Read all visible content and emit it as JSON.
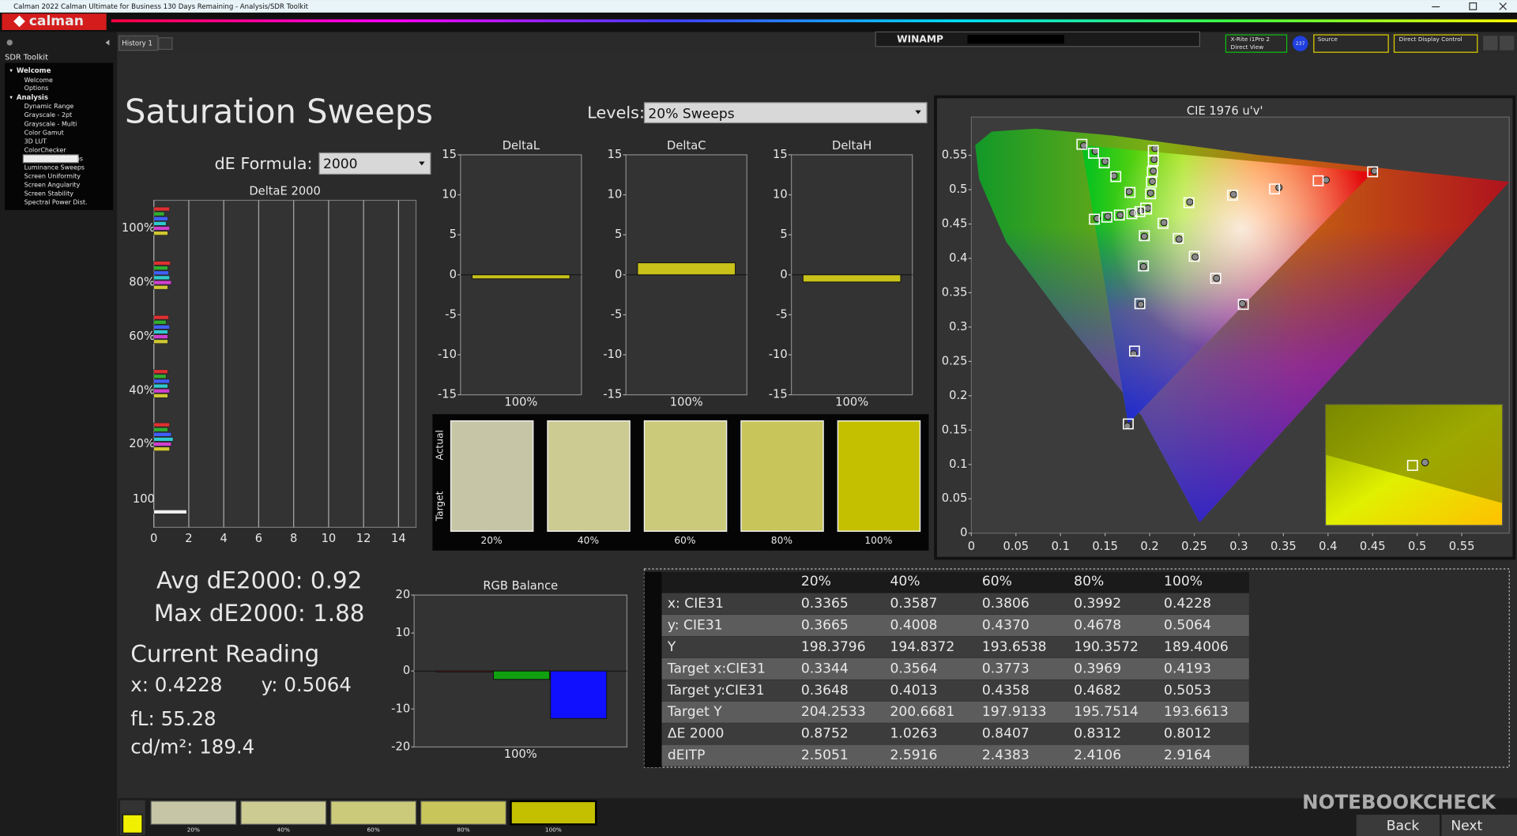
{
  "title_bar": "Calman 2022 Calman Ultimate for Business 130 Days Remaining  - Analysis/SDR Toolkit",
  "logo": "calman",
  "tab": "History 1",
  "winamp": "WINAMP",
  "meter": {
    "line1": "X-Rite i1Pro 2",
    "line2": "Direct View",
    "badge": "237"
  },
  "source": "Source",
  "display": "Direct Display Control",
  "sidebar": {
    "title": "SDR Toolkit",
    "items": [
      {
        "label": "Welcome",
        "group": true
      },
      {
        "label": "Welcome"
      },
      {
        "label": "Options"
      },
      {
        "label": "Analysis",
        "group": true
      },
      {
        "label": "Dynamic Range"
      },
      {
        "label": "Grayscale - 2pt"
      },
      {
        "label": "Grayscale - Multi"
      },
      {
        "label": "Color Gamut"
      },
      {
        "label": "3D LUT"
      },
      {
        "label": "ColorChecker"
      },
      {
        "label": "Saturation Sweeps",
        "selected": true
      },
      {
        "label": "Luminance Sweeps"
      },
      {
        "label": "Screen Uniformity"
      },
      {
        "label": "Screen Angularity"
      },
      {
        "label": "Screen Stability"
      },
      {
        "label": "Spectral Power Dist."
      }
    ]
  },
  "page_title": "Saturation Sweeps",
  "levels": {
    "label": "Levels:",
    "value": "20% Sweeps"
  },
  "formula": {
    "label": "dE Formula:",
    "value": "2000"
  },
  "deltae_chart": {
    "type": "bar",
    "orientation": "horizontal",
    "title": "DeltaE 2000",
    "categories": [
      "100%",
      "80%",
      "60%",
      "40%",
      "20%",
      "100"
    ],
    "series": [
      {
        "color": "#e03030",
        "values": [
          0.9,
          0.95,
          0.85,
          0.8,
          0.9,
          null
        ]
      },
      {
        "color": "#30b030",
        "values": [
          0.6,
          0.8,
          0.7,
          0.7,
          0.8,
          null
        ]
      },
      {
        "color": "#4060ff",
        "values": [
          0.8,
          0.85,
          0.9,
          0.9,
          1.0,
          null
        ]
      },
      {
        "color": "#30c8d0",
        "values": [
          0.7,
          0.9,
          0.8,
          0.8,
          1.1,
          null
        ]
      },
      {
        "color": "#d040d0",
        "values": [
          0.9,
          1.0,
          0.8,
          0.9,
          1.0,
          null
        ]
      },
      {
        "color": "#d0c830",
        "values": [
          0.8,
          0.8,
          0.8,
          0.8,
          0.9,
          null
        ]
      },
      {
        "color": "#f0f0f0",
        "values": [
          null,
          null,
          null,
          null,
          null,
          1.88
        ]
      }
    ],
    "xlim": [
      0,
      15
    ],
    "xticks": [
      0,
      2,
      4,
      6,
      8,
      10,
      12,
      14
    ],
    "grid": true
  },
  "delta_charts": [
    {
      "type": "bar",
      "title": "DeltaL",
      "categories": [
        "100%"
      ],
      "values": [
        -0.5
      ],
      "color": "#c8c21a",
      "ylim": [
        -15,
        15
      ],
      "yticks": [
        -15,
        -10,
        -5,
        0,
        5,
        10,
        15
      ]
    },
    {
      "type": "bar",
      "title": "DeltaC",
      "categories": [
        "100%"
      ],
      "values": [
        1.5
      ],
      "color": "#c8c21a",
      "ylim": [
        -15,
        15
      ],
      "yticks": [
        -15,
        -10,
        -5,
        0,
        5,
        10,
        15
      ]
    },
    {
      "type": "bar",
      "title": "DeltaH",
      "categories": [
        "100%"
      ],
      "values": [
        -0.9
      ],
      "color": "#c8c21a",
      "ylim": [
        -15,
        15
      ],
      "yticks": [
        -15,
        -10,
        -5,
        0,
        5,
        10,
        15
      ]
    }
  ],
  "swatches": {
    "labels": [
      "Actual",
      "Target"
    ],
    "categories": [
      "20%",
      "40%",
      "60%",
      "80%",
      "100%"
    ],
    "colors": [
      "#c6c6a6",
      "#cbcb92",
      "#cbca7a",
      "#c8c55a",
      "#c4c000"
    ]
  },
  "stats": {
    "avg": "Avg dE2000: 0.92",
    "max": "Max dE2000: 1.88",
    "reading": "Current Reading",
    "x": "x: 0.4228",
    "y": "y: 0.5064",
    "fl": "fL: 55.28",
    "cdm2": "cd/m²: 189.4"
  },
  "rgb_chart": {
    "type": "bar",
    "title": "RGB Balance",
    "categories": [
      "100%"
    ],
    "series": [
      {
        "color": "#d02020",
        "values": [
          -0.2
        ]
      },
      {
        "color": "#10a010",
        "values": [
          -2.2
        ]
      },
      {
        "color": "#1010ff",
        "values": [
          -12.5
        ]
      }
    ],
    "ylim": [
      -20,
      20
    ],
    "yticks": [
      -20,
      -10,
      0,
      10,
      20
    ]
  },
  "table": {
    "columns": [
      "20%",
      "40%",
      "60%",
      "80%",
      "100%"
    ],
    "rows": [
      {
        "label": "x: CIE31",
        "values": [
          "0.3365",
          "0.3587",
          "0.3806",
          "0.3992",
          "0.4228"
        ]
      },
      {
        "label": "y: CIE31",
        "values": [
          "0.3665",
          "0.4008",
          "0.4370",
          "0.4678",
          "0.5064"
        ]
      },
      {
        "label": "Y",
        "values": [
          "198.3796",
          "194.8372",
          "193.6538",
          "190.3572",
          "189.4006"
        ]
      },
      {
        "label": "Target x:CIE31",
        "values": [
          "0.3344",
          "0.3564",
          "0.3773",
          "0.3969",
          "0.4193"
        ]
      },
      {
        "label": "Target y:CIE31",
        "values": [
          "0.3648",
          "0.4013",
          "0.4358",
          "0.4682",
          "0.5053"
        ]
      },
      {
        "label": "Target Y",
        "values": [
          "204.2533",
          "200.6681",
          "197.9133",
          "195.7514",
          "193.6613"
        ]
      },
      {
        "label": "ΔE 2000",
        "values": [
          "0.8752",
          "1.0263",
          "0.8407",
          "0.8312",
          "0.8012"
        ]
      },
      {
        "label": "dEITP",
        "values": [
          "2.5051",
          "2.5916",
          "2.4383",
          "2.4106",
          "2.9164"
        ]
      }
    ]
  },
  "cie_chart": {
    "type": "scatter",
    "title": "CIE 1976 u'v'",
    "xlim": [
      0,
      0.6
    ],
    "ylim": [
      0,
      0.6
    ],
    "xticks": [
      0,
      0.05,
      0.1,
      0.15,
      0.2,
      0.25,
      0.3,
      0.35,
      0.4,
      0.45,
      0.5,
      0.55
    ],
    "yticks": [
      0,
      0.05,
      0.1,
      0.15,
      0.2,
      0.25,
      0.3,
      0.35,
      0.4,
      0.45,
      0.5,
      0.55
    ],
    "targets": [
      {
        "u": [
          0.196
        ],
        "v": [
          0.4725
        ]
      },
      {
        "u": [
          0.244,
          0.293,
          0.34,
          0.389,
          0.45
        ],
        "v": [
          0.481,
          0.492,
          0.501,
          0.513,
          0.526
        ]
      },
      {
        "u": [
          0.178,
          0.162,
          0.149,
          0.137,
          0.124
        ],
        "v": [
          0.496,
          0.519,
          0.539,
          0.553,
          0.566
        ]
      },
      {
        "u": [
          0.194,
          0.193,
          0.189,
          0.183,
          0.176
        ],
        "v": [
          0.433,
          0.389,
          0.334,
          0.265,
          0.159
        ]
      },
      {
        "u": [
          0.189,
          0.18,
          0.166,
          0.152,
          0.138
        ],
        "v": [
          0.468,
          0.465,
          0.463,
          0.46,
          0.457
        ]
      },
      {
        "u": [
          0.215,
          0.232,
          0.25,
          0.274,
          0.305
        ],
        "v": [
          0.451,
          0.429,
          0.403,
          0.371,
          0.333
        ]
      },
      {
        "u": [
          0.201,
          0.202,
          0.203,
          0.204,
          0.204
        ],
        "v": [
          0.494,
          0.511,
          0.526,
          0.542,
          0.557
        ]
      }
    ],
    "measured": [
      {
        "u": [
          0.198
        ],
        "v": [
          0.473
        ]
      },
      {
        "u": [
          0.245,
          0.294,
          0.345,
          0.398,
          0.452
        ],
        "v": [
          0.482,
          0.493,
          0.503,
          0.514,
          0.527
        ]
      },
      {
        "u": [
          0.177,
          0.16,
          0.15,
          0.139,
          0.126
        ],
        "v": [
          0.497,
          0.52,
          0.541,
          0.556,
          0.564
        ]
      },
      {
        "u": [
          0.194,
          0.193,
          0.19,
          0.182,
          0.175
        ],
        "v": [
          0.432,
          0.388,
          0.333,
          0.261,
          0.156
        ]
      },
      {
        "u": [
          0.19,
          0.181,
          0.167,
          0.153,
          0.141
        ],
        "v": [
          0.469,
          0.466,
          0.463,
          0.461,
          0.458
        ]
      },
      {
        "u": [
          0.216,
          0.233,
          0.251,
          0.275,
          0.304
        ],
        "v": [
          0.452,
          0.428,
          0.402,
          0.371,
          0.334
        ]
      },
      {
        "u": [
          0.201,
          0.203,
          0.204,
          0.205,
          0.206
        ],
        "v": [
          0.495,
          0.512,
          0.527,
          0.544,
          0.56
        ]
      }
    ]
  },
  "bottom": {
    "swatches": [
      "20%",
      "40%",
      "60%",
      "80%",
      "100%"
    ],
    "colors": [
      "#c6c6a6",
      "#cbcb92",
      "#cbca7a",
      "#c8c55a",
      "#c4c000"
    ],
    "back": "Back",
    "next": "Next",
    "watermark": "NOTEBOOKCHECK"
  }
}
